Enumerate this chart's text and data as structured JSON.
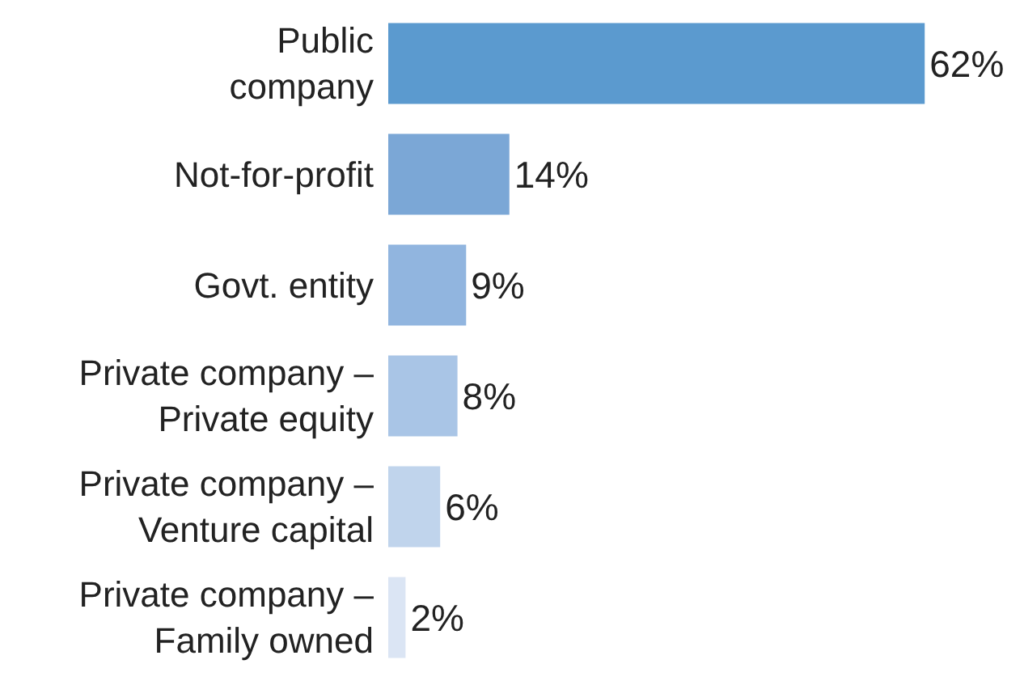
{
  "chart_data": {
    "type": "bar",
    "orientation": "horizontal",
    "data_labels": true,
    "categories": [
      "Public\ncompany",
      "Not-for-profit",
      "Govt. entity",
      "Private company –\nPrivate equity",
      "Private company –\nVenture capital",
      "Private company –\nFamily owned"
    ],
    "values": [
      62,
      14,
      9,
      8,
      6,
      2
    ],
    "value_labels": [
      "62%",
      "14%",
      "9%",
      "8%",
      "6%",
      "2%"
    ],
    "colors": [
      "#5b9acf",
      "#7ba7d6",
      "#91b5df",
      "#a9c5e6",
      "#c0d4ec",
      "#dbe5f4"
    ],
    "legend": false
  }
}
